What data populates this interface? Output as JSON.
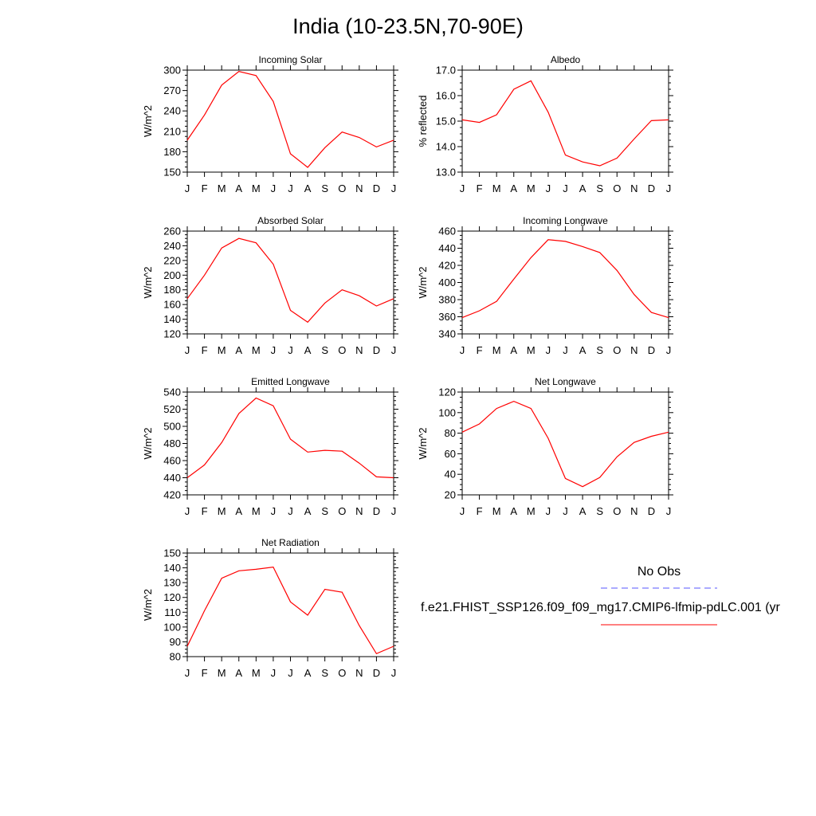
{
  "page": {
    "title": "India (10-23.5N,70-90E)"
  },
  "legend": {
    "obs_label": "No Obs",
    "obs_color": "#5555ff",
    "model_label": "f.e21.FHIST_SSP126.f09_f09_mg17.CMIP6-lfmip-pdLC.001 (yr",
    "model_color": "#ff0000"
  },
  "chart_data": [
    {
      "type": "line",
      "title": "Incoming Solar",
      "ylabel": "W/m^2",
      "categories": [
        "J",
        "F",
        "M",
        "A",
        "M",
        "J",
        "J",
        "A",
        "S",
        "O",
        "N",
        "D",
        "J"
      ],
      "ylim": [
        150,
        300
      ],
      "yticks": [
        150,
        180,
        210,
        240,
        270,
        300
      ],
      "ytick_labels": [
        "150",
        "180",
        "210",
        "240",
        "270",
        "300"
      ],
      "series": [
        {
          "color": "#ff0000",
          "values": [
            197,
            234,
            278,
            298,
            292,
            254,
            177,
            157,
            186,
            209,
            201,
            187,
            197
          ]
        }
      ]
    },
    {
      "type": "line",
      "title": "Albedo",
      "ylabel": "% reflected",
      "categories": [
        "J",
        "F",
        "M",
        "A",
        "M",
        "J",
        "J",
        "A",
        "S",
        "O",
        "N",
        "D",
        "J"
      ],
      "ylim": [
        13,
        17
      ],
      "yticks": [
        13,
        14,
        15,
        16,
        17
      ],
      "ytick_labels": [
        "13.0",
        "14.0",
        "15.0",
        "16.0",
        "17.0"
      ],
      "series": [
        {
          "color": "#ff0000",
          "values": [
            15.05,
            14.95,
            15.25,
            16.25,
            16.58,
            15.35,
            13.67,
            13.4,
            13.25,
            13.55,
            14.3,
            15.02,
            15.05
          ]
        }
      ]
    },
    {
      "type": "line",
      "title": "Absorbed Solar",
      "ylabel": "W/m^2",
      "categories": [
        "J",
        "F",
        "M",
        "A",
        "M",
        "J",
        "J",
        "A",
        "S",
        "O",
        "N",
        "D",
        "J"
      ],
      "ylim": [
        120,
        260
      ],
      "yticks": [
        120,
        140,
        160,
        180,
        200,
        220,
        240,
        260
      ],
      "ytick_labels": [
        "120",
        "140",
        "160",
        "180",
        "200",
        "220",
        "240",
        "260"
      ],
      "series": [
        {
          "color": "#ff0000",
          "values": [
            168,
            200,
            237,
            250,
            244,
            215,
            152,
            136,
            162,
            180,
            172,
            158,
            168
          ]
        }
      ]
    },
    {
      "type": "line",
      "title": "Incoming Longwave",
      "ylabel": "W/m^2",
      "categories": [
        "J",
        "F",
        "M",
        "A",
        "M",
        "J",
        "J",
        "A",
        "S",
        "O",
        "N",
        "D",
        "J"
      ],
      "ylim": [
        340,
        460
      ],
      "yticks": [
        340,
        360,
        380,
        400,
        420,
        440,
        460
      ],
      "ytick_labels": [
        "340",
        "360",
        "380",
        "400",
        "420",
        "440",
        "460"
      ],
      "series": [
        {
          "color": "#ff0000",
          "values": [
            359,
            367,
            378,
            404,
            429,
            450,
            448,
            442,
            435,
            414,
            386,
            365,
            359
          ]
        }
      ]
    },
    {
      "type": "line",
      "title": "Emitted Longwave",
      "ylabel": "W/m^2",
      "categories": [
        "J",
        "F",
        "M",
        "A",
        "M",
        "J",
        "J",
        "A",
        "S",
        "O",
        "N",
        "D",
        "J"
      ],
      "ylim": [
        420,
        540
      ],
      "yticks": [
        420,
        440,
        460,
        480,
        500,
        520,
        540
      ],
      "ytick_labels": [
        "420",
        "440",
        "460",
        "480",
        "500",
        "520",
        "540"
      ],
      "series": [
        {
          "color": "#ff0000",
          "values": [
            440,
            455,
            481,
            515,
            533,
            524,
            485,
            470,
            472,
            471,
            457,
            441,
            440
          ]
        }
      ]
    },
    {
      "type": "line",
      "title": "Net Longwave",
      "ylabel": "W/m^2",
      "categories": [
        "J",
        "F",
        "M",
        "A",
        "M",
        "J",
        "J",
        "A",
        "S",
        "O",
        "N",
        "D",
        "J"
      ],
      "ylim": [
        20,
        120
      ],
      "yticks": [
        20,
        40,
        60,
        80,
        100,
        120
      ],
      "ytick_labels": [
        "20",
        "40",
        "60",
        "80",
        "100",
        "120"
      ],
      "series": [
        {
          "color": "#ff0000",
          "values": [
            81,
            89,
            104,
            111,
            104,
            75,
            36,
            28,
            37,
            57,
            71,
            77,
            81
          ]
        }
      ]
    },
    {
      "type": "line",
      "title": "Net Radiation",
      "ylabel": "W/m^2",
      "categories": [
        "J",
        "F",
        "M",
        "A",
        "M",
        "J",
        "J",
        "A",
        "S",
        "O",
        "N",
        "D",
        "J"
      ],
      "ylim": [
        80,
        150
      ],
      "yticks": [
        80,
        90,
        100,
        110,
        120,
        130,
        140,
        150
      ],
      "ytick_labels": [
        "80",
        "90",
        "100",
        "110",
        "120",
        "130",
        "140",
        "150"
      ],
      "series": [
        {
          "color": "#ff0000",
          "values": [
            87,
            111,
            133,
            138,
            139,
            140.5,
            117,
            108,
            125.5,
            123.5,
            101,
            82,
            87
          ]
        }
      ]
    }
  ]
}
